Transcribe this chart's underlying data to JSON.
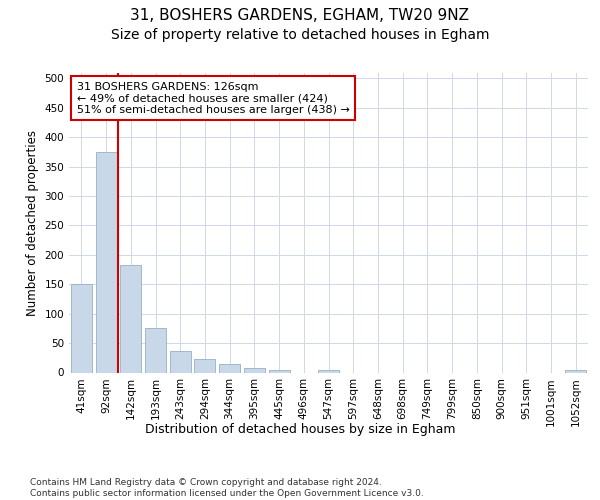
{
  "title": "31, BOSHERS GARDENS, EGHAM, TW20 9NZ",
  "subtitle": "Size of property relative to detached houses in Egham",
  "xlabel": "Distribution of detached houses by size in Egham",
  "ylabel": "Number of detached properties",
  "categories": [
    "41sqm",
    "92sqm",
    "142sqm",
    "193sqm",
    "243sqm",
    "294sqm",
    "344sqm",
    "395sqm",
    "445sqm",
    "496sqm",
    "547sqm",
    "597sqm",
    "648sqm",
    "698sqm",
    "749sqm",
    "799sqm",
    "850sqm",
    "900sqm",
    "951sqm",
    "1001sqm",
    "1052sqm"
  ],
  "values": [
    150,
    375,
    183,
    75,
    37,
    23,
    14,
    7,
    5,
    0,
    4,
    0,
    0,
    0,
    0,
    0,
    0,
    0,
    0,
    0,
    4
  ],
  "bar_color": "#c8d8e8",
  "bar_edgecolor": "#a0b8cc",
  "vline_x": 1.5,
  "vline_color": "#cc0000",
  "annotation_text": "31 BOSHERS GARDENS: 126sqm\n← 49% of detached houses are smaller (424)\n51% of semi-detached houses are larger (438) →",
  "annotation_box_color": "#ffffff",
  "annotation_box_edgecolor": "#cc0000",
  "ylim": [
    0,
    510
  ],
  "yticks": [
    0,
    50,
    100,
    150,
    200,
    250,
    300,
    350,
    400,
    450,
    500
  ],
  "background_color": "#ffffff",
  "grid_color": "#d0d8e8",
  "footer_text": "Contains HM Land Registry data © Crown copyright and database right 2024.\nContains public sector information licensed under the Open Government Licence v3.0.",
  "title_fontsize": 11,
  "subtitle_fontsize": 10,
  "xlabel_fontsize": 9,
  "ylabel_fontsize": 8.5,
  "tick_fontsize": 7.5,
  "annotation_fontsize": 8,
  "footer_fontsize": 6.5
}
